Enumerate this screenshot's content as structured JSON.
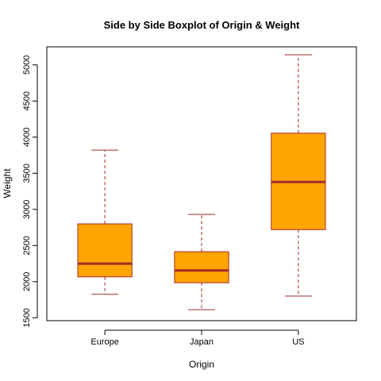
{
  "chart_data": {
    "type": "boxplot",
    "title": "Side by Side Boxplot of Origin & Weight",
    "xlabel": "Origin",
    "ylabel": "Weight",
    "ylim": [
      1460,
      5250
    ],
    "yticks": [
      1500,
      2000,
      2500,
      3000,
      3500,
      4000,
      4500,
      5000
    ],
    "ytick_labels": [
      "1500",
      "2000",
      "2500",
      "3000",
      "3500",
      "4000",
      "4500",
      "5000"
    ],
    "categories": [
      "Europe",
      "Japan",
      "US"
    ],
    "boxes": [
      {
        "category": "Europe",
        "min": 1825,
        "q1": 2067,
        "median": 2250,
        "q3": 2800,
        "max": 3820
      },
      {
        "category": "Japan",
        "min": 1613,
        "q1": 1985,
        "median": 2155,
        "q3": 2415,
        "max": 2930
      },
      {
        "category": "US",
        "min": 1800,
        "q1": 2720,
        "median": 3380,
        "q3": 4055,
        "max": 5140
      }
    ],
    "grid": false,
    "colors": {
      "box_fill": "#FFA500",
      "box_stroke": "#A52A2A",
      "median": "#A52A2A",
      "whisker": "#A52A2A"
    }
  }
}
